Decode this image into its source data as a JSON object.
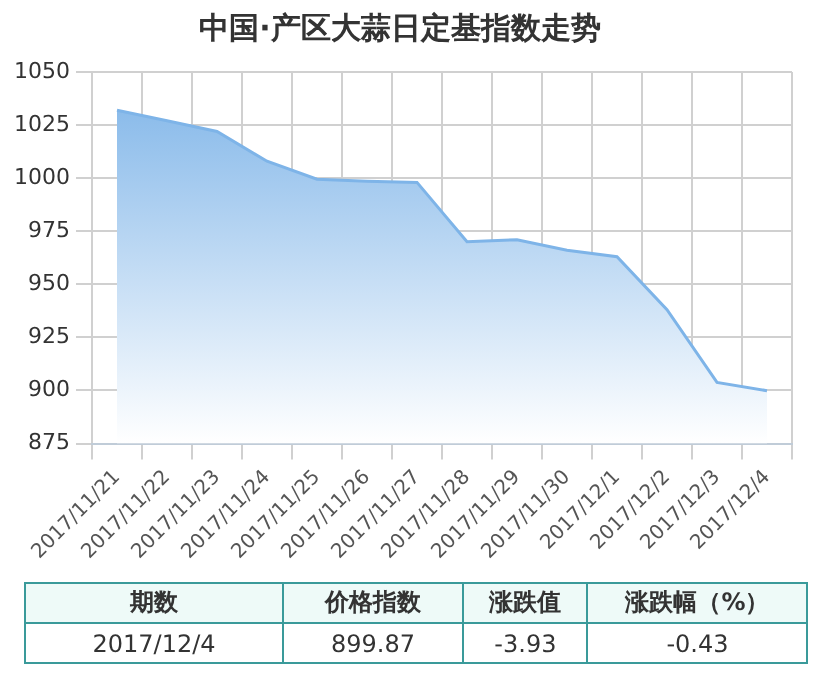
{
  "chart_data": {
    "type": "area",
    "title": "中国·产区大蒜日定基指数走势",
    "categories": [
      "2017/11/21",
      "2017/11/22",
      "2017/11/23",
      "2017/11/24",
      "2017/11/25",
      "2017/11/26",
      "2017/11/27",
      "2017/11/28",
      "2017/11/29",
      "2017/11/30",
      "2017/12/1",
      "2017/12/2",
      "2017/12/3",
      "2017/12/4"
    ],
    "values": [
      1032,
      1027,
      1022,
      1008,
      999.5,
      998.5,
      998,
      970,
      971,
      966,
      963,
      938,
      903.8,
      899.87
    ],
    "color": "#7eb4e8",
    "ylim": [
      875,
      1050
    ],
    "yticks": [
      875,
      900,
      925,
      950,
      975,
      1000,
      1025,
      1050
    ],
    "grid": true,
    "annotations": [
      "期数",
      "价格指数",
      "涨跌值",
      "涨跌幅（%）",
      "2017/12/4",
      "899.87",
      "-3.93",
      "-0.43"
    ]
  }
}
